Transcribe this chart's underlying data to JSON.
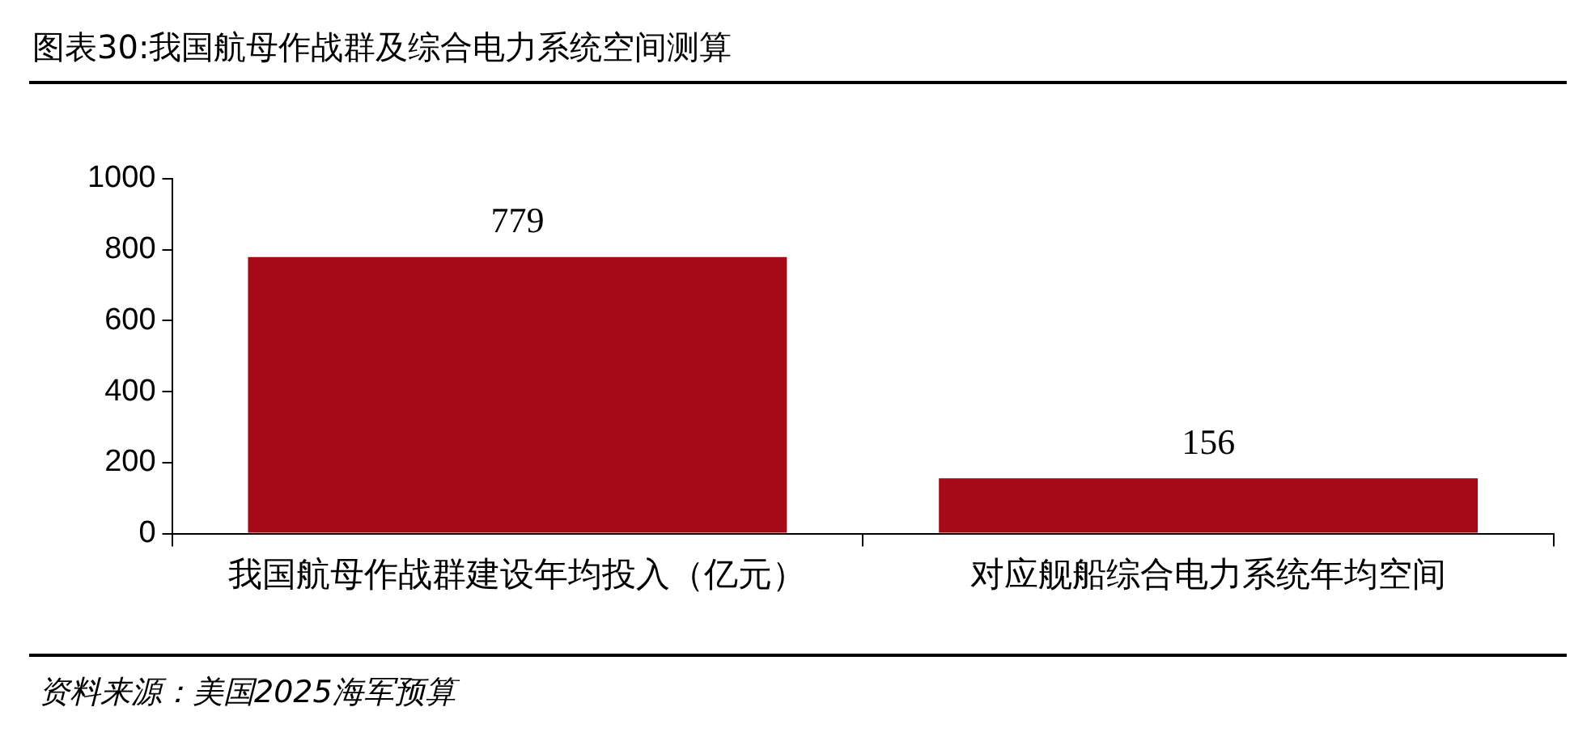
{
  "chart_data": {
    "type": "bar",
    "title": "图表30:我国航母作战群及综合电力系统空间测算",
    "categories": [
      "我国航母作战群建设年均投入（亿元）",
      "对应舰船综合电力系统年均空间"
    ],
    "values": [
      779,
      156
    ],
    "color": "#a50a16",
    "ylim": [
      0,
      1000
    ],
    "yticks": [
      0,
      200,
      400,
      600,
      800,
      1000
    ],
    "grid": false,
    "legend": false,
    "data_labels": true,
    "annotations": [
      "资料来源：美国2025海军预算"
    ]
  }
}
